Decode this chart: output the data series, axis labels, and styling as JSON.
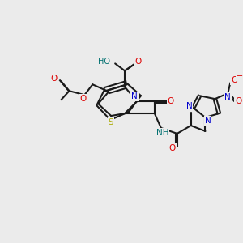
{
  "background_color": "#ebebeb",
  "bond_color": "#1a1a1a",
  "atom_colors": {
    "O": "#dd0000",
    "N": "#0000cc",
    "S": "#aaaa00",
    "H": "#007070",
    "plus": "#0000cc",
    "minus": "#dd0000"
  },
  "figsize": [
    3.0,
    3.0
  ],
  "dpi": 100
}
